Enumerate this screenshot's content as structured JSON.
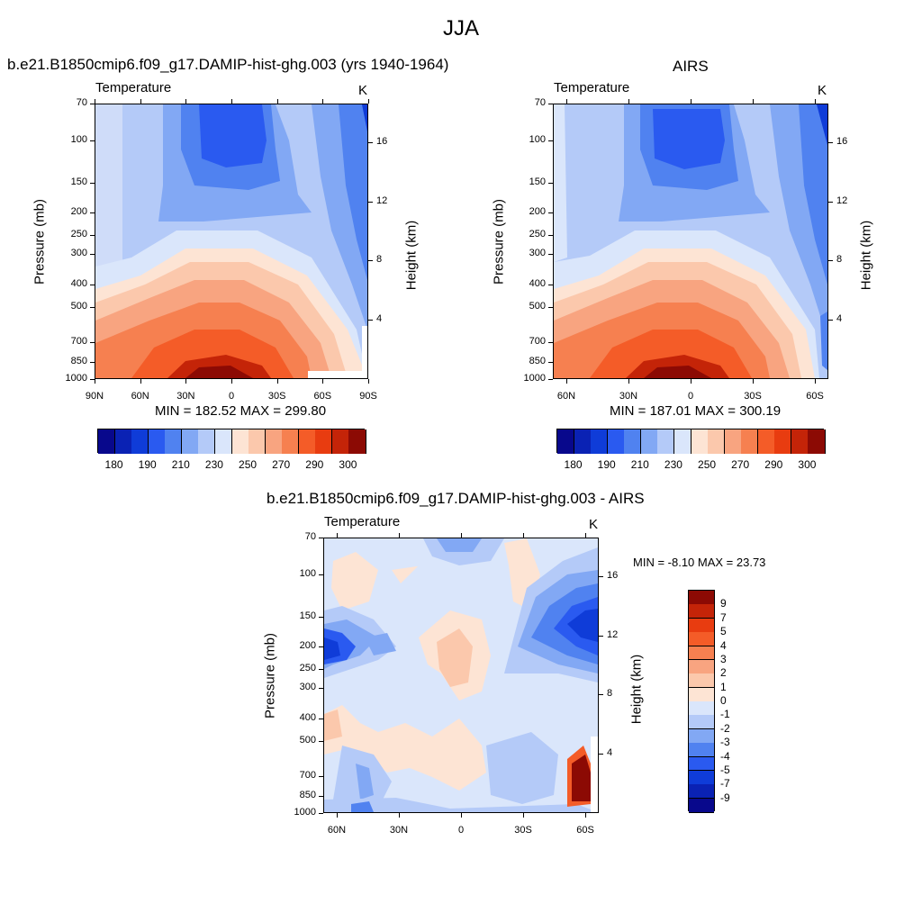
{
  "title": "JJA",
  "panels": [
    {
      "id": "model",
      "title": "b.e21.B1850cmip6.f09_g17.DAMIP-hist-ghg.003 (yrs 1940-1964)",
      "left_label": "Temperature",
      "right_label": "K",
      "ylabel": "Pressure (mb)",
      "y2label": "Height (km)",
      "stats": "MIN = 182.52  MAX = 299.80",
      "x_ticks": [
        "90N",
        "60N",
        "30N",
        "0",
        "30S",
        "60S",
        "90S"
      ],
      "p_ticks": [
        "70",
        "100",
        "150",
        "200",
        "250",
        "300",
        "400",
        "500",
        "700",
        "850",
        "1000"
      ],
      "h_ticks": [
        "16",
        "12",
        "8",
        "4"
      ]
    },
    {
      "id": "airs",
      "title": "AIRS",
      "left_label": "Temperature",
      "right_label": "K",
      "ylabel": "Pressure (mb)",
      "y2label": "Height (km)",
      "stats": "MIN = 187.01  MAX = 300.19",
      "x_ticks": [
        "60N",
        "30N",
        "0",
        "30S",
        "60S"
      ],
      "p_ticks": [
        "70",
        "100",
        "150",
        "200",
        "250",
        "300",
        "400",
        "500",
        "700",
        "850",
        "1000"
      ],
      "h_ticks": [
        "16",
        "12",
        "8",
        "4"
      ]
    },
    {
      "id": "diff",
      "title": "b.e21.B1850cmip6.f09_g17.DAMIP-hist-ghg.003 - AIRS",
      "left_label": "Temperature",
      "right_label": "K",
      "ylabel": "Pressure (mb)",
      "y2label": "Height (km)",
      "stats": "MIN =  -8.10  MAX =  23.73",
      "x_ticks": [
        "60N",
        "30N",
        "0",
        "30S",
        "60S"
      ],
      "p_ticks": [
        "70",
        "100",
        "150",
        "200",
        "250",
        "300",
        "400",
        "500",
        "700",
        "850",
        "1000"
      ],
      "h_ticks": [
        "16",
        "12",
        "8",
        "4"
      ]
    }
  ],
  "colorbar_abs": {
    "colors": [
      "#08088c",
      "#0a22b4",
      "#0f3cd8",
      "#2a5af0",
      "#5082f0",
      "#82a8f4",
      "#b4caf8",
      "#dae6fb",
      "#fde4d4",
      "#fbc8ac",
      "#f8a480",
      "#f68050",
      "#f45c28",
      "#e83c10",
      "#c42408",
      "#8c0a04"
    ],
    "labels": [
      "180",
      "190",
      "210",
      "230",
      "250",
      "270",
      "290",
      "300"
    ]
  },
  "colorbar_diff": {
    "colors": [
      "#08088c",
      "#0a22b4",
      "#0f3cd8",
      "#2a5af0",
      "#5082f0",
      "#82a8f4",
      "#b4caf8",
      "#dae6fb",
      "#fde4d4",
      "#fbc8ac",
      "#f8a480",
      "#f68050",
      "#f45c28",
      "#e83c10",
      "#c42408",
      "#8c0a04"
    ],
    "labels": [
      "-9",
      "-7",
      "-5",
      "-4",
      "-3",
      "-2",
      "-1",
      "0",
      "1",
      "2",
      "3",
      "4",
      "5",
      "7",
      "9"
    ]
  },
  "chart_data": [
    {
      "type": "heatmap",
      "title": "b.e21.B1850cmip6.f09_g17.DAMIP-hist-ghg.003 (yrs 1940-1964)",
      "variable": "Temperature",
      "units": "K",
      "xlabel": "",
      "ylabel": "Pressure (mb)",
      "y2label": "Height (km)",
      "x": [
        "90N",
        "60N",
        "30N",
        "0",
        "30S",
        "60S",
        "90S"
      ],
      "y": [
        70,
        100,
        150,
        200,
        250,
        300,
        400,
        500,
        700,
        850,
        1000
      ],
      "y_scale": "log",
      "min": 182.52,
      "max": 299.8,
      "contour_levels": [
        180,
        185,
        190,
        195,
        200,
        210,
        220,
        230,
        240,
        250,
        260,
        270,
        280,
        285,
        290,
        295,
        300
      ]
    },
    {
      "type": "heatmap",
      "title": "AIRS",
      "variable": "Temperature",
      "units": "K",
      "xlabel": "",
      "ylabel": "Pressure (mb)",
      "y2label": "Height (km)",
      "x": [
        "60N",
        "30N",
        "0",
        "30S",
        "60S"
      ],
      "y": [
        70,
        100,
        150,
        200,
        250,
        300,
        400,
        500,
        700,
        850,
        1000
      ],
      "y_scale": "log",
      "min": 187.01,
      "max": 300.19,
      "contour_levels": [
        180,
        185,
        190,
        195,
        200,
        210,
        220,
        230,
        240,
        250,
        260,
        270,
        280,
        285,
        290,
        295,
        300
      ]
    },
    {
      "type": "heatmap",
      "title": "b.e21.B1850cmip6.f09_g17.DAMIP-hist-ghg.003 - AIRS",
      "variable": "Temperature",
      "units": "K",
      "xlabel": "",
      "ylabel": "Pressure (mb)",
      "y2label": "Height (km)",
      "x": [
        "60N",
        "30N",
        "0",
        "30S",
        "60S"
      ],
      "y": [
        70,
        100,
        150,
        200,
        250,
        300,
        400,
        500,
        700,
        850,
        1000
      ],
      "y_scale": "log",
      "min": -8.1,
      "max": 23.73,
      "contour_levels": [
        -9,
        -7,
        -5,
        -4,
        -3,
        -2,
        -1,
        0,
        1,
        2,
        3,
        4,
        5,
        7,
        9
      ]
    }
  ]
}
